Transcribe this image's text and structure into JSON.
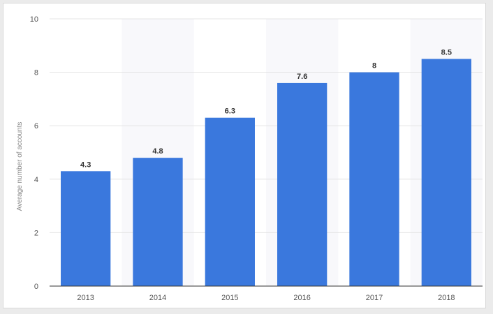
{
  "chart_data": {
    "type": "bar",
    "title": "",
    "xlabel": "",
    "ylabel": "Average number of accounts",
    "categories": [
      "2013",
      "2014",
      "2015",
      "2016",
      "2017",
      "2018"
    ],
    "values": [
      4.3,
      4.8,
      6.3,
      7.6,
      8,
      8.5
    ],
    "value_labels": [
      "4.3",
      "4.8",
      "6.3",
      "7.6",
      "8",
      "8.5"
    ],
    "ylim": [
      0,
      10
    ],
    "yticks": [
      0,
      2,
      4,
      6,
      8,
      10
    ],
    "ytick_labels": [
      "0",
      "2",
      "4",
      "6",
      "8",
      "10"
    ],
    "grid": true,
    "legend": "none",
    "colors": {
      "bar": "#3a78dd",
      "alt_band": "#f8f8fb",
      "grid": "#e4e4e4",
      "axis": "#333333"
    }
  }
}
